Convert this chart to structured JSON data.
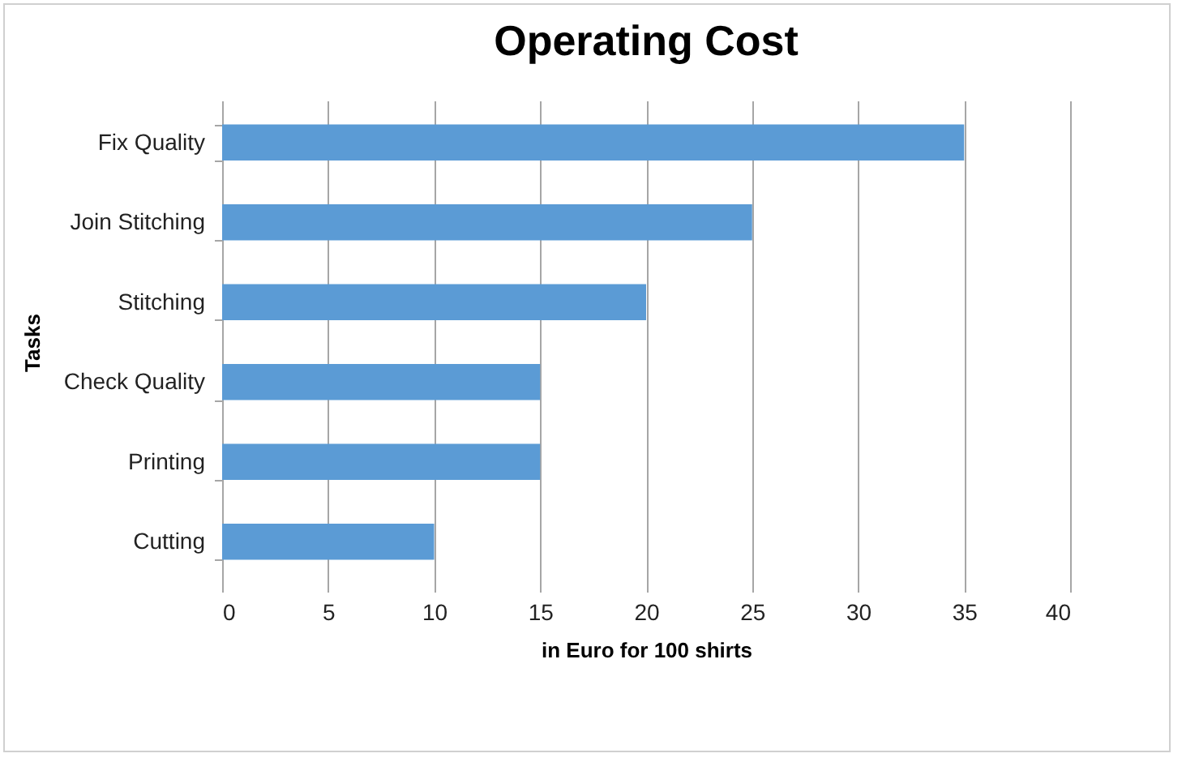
{
  "chart_data": {
    "type": "bar",
    "orientation": "horizontal",
    "title": "Operating Cost",
    "xlabel": "in Euro for 100 shirts",
    "ylabel": "Tasks",
    "categories": [
      "Fix Quality",
      "Join Stitching",
      "Stitching",
      "Check Quality",
      "Printing",
      "Cutting"
    ],
    "values": [
      35,
      25,
      20,
      15,
      15,
      10
    ],
    "color": "#5b9bd5",
    "xlim": [
      0,
      40
    ],
    "xticks": [
      0,
      5,
      10,
      15,
      20,
      25,
      30,
      35,
      40
    ],
    "grid": "x"
  }
}
